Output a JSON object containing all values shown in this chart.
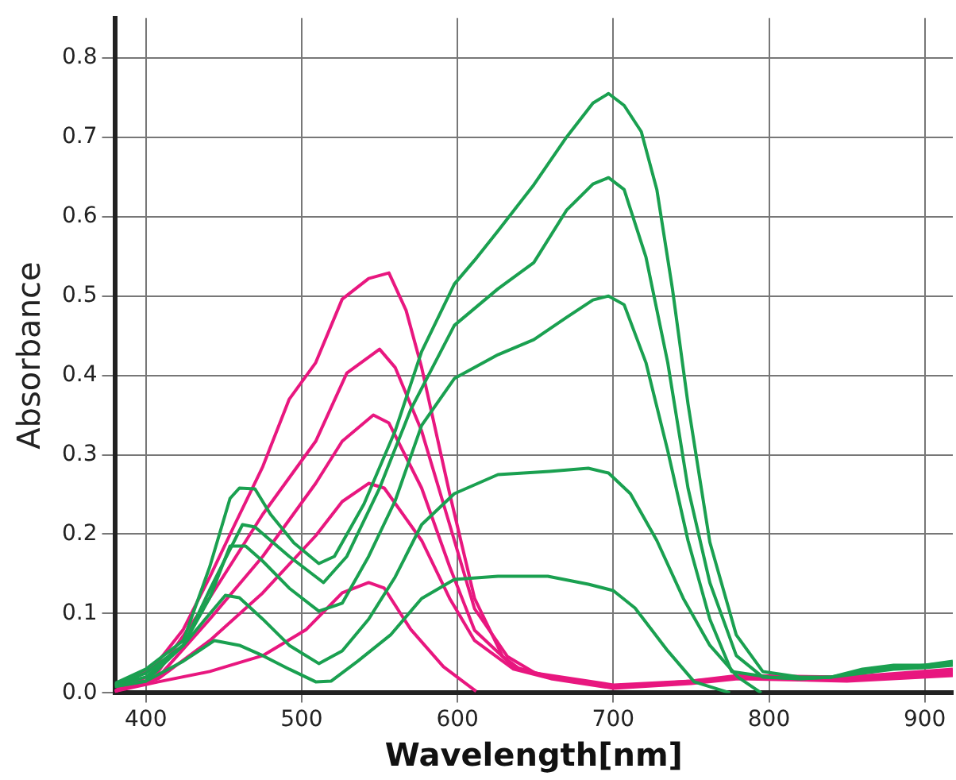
{
  "chart_data": {
    "type": "line",
    "xlabel": "Wavelength[nm]",
    "ylabel": "Absorbance",
    "xlim": [
      380,
      918
    ],
    "ylim": [
      0,
      0.85
    ],
    "xticks": [
      400,
      500,
      600,
      700,
      800,
      900
    ],
    "yticks": [
      {
        "value": 0,
        "label": "0.0"
      },
      0.1,
      0.2,
      0.3,
      0.4,
      0.5,
      0.6,
      0.7,
      0.8
    ],
    "grid": true,
    "legend": false,
    "marker": "none",
    "line_style": "solid",
    "series": [
      {
        "color": "#1aa050",
        "x": [
          380,
          400,
          424,
          441,
          454,
          460,
          470,
          480,
          495,
          511,
          521,
          540,
          560,
          577,
          598,
          611,
          626,
          649,
          670,
          687,
          697,
          707,
          718,
          728,
          738,
          748,
          762,
          779,
          796,
          820,
          840,
          860,
          880,
          900,
          918
        ],
        "values": [
          0.012,
          0.03,
          0.066,
          0.159,
          0.245,
          0.258,
          0.257,
          0.225,
          0.189,
          0.163,
          0.172,
          0.238,
          0.33,
          0.43,
          0.515,
          0.545,
          0.582,
          0.64,
          0.7,
          0.743,
          0.755,
          0.74,
          0.707,
          0.634,
          0.509,
          0.364,
          0.19,
          0.073,
          0.027,
          0.02,
          0.02,
          0.03,
          0.035,
          0.035,
          0.04
        ]
      },
      {
        "color": "#1aa050",
        "x": [
          380,
          400,
          424,
          441,
          462,
          470,
          492,
          514,
          529,
          550,
          570,
          598,
          626,
          649,
          670,
          687,
          697,
          707,
          721,
          735,
          748,
          762,
          779,
          796,
          820,
          840,
          860,
          880,
          900,
          918
        ],
        "values": [
          0.01,
          0.025,
          0.06,
          0.13,
          0.212,
          0.209,
          0.172,
          0.139,
          0.172,
          0.258,
          0.357,
          0.463,
          0.509,
          0.542,
          0.608,
          0.641,
          0.649,
          0.634,
          0.549,
          0.416,
          0.258,
          0.139,
          0.047,
          0.02,
          0.018,
          0.02,
          0.028,
          0.032,
          0.035,
          0.038
        ]
      },
      {
        "color": "#1aa050",
        "x": [
          380,
          400,
          424,
          441,
          454,
          464,
          475,
          492,
          511,
          526,
          543,
          560,
          577,
          598,
          626,
          649,
          670,
          687,
          697,
          707,
          721,
          735,
          748,
          762,
          776,
          800,
          820,
          840,
          860,
          880,
          900,
          918
        ],
        "values": [
          0.01,
          0.02,
          0.06,
          0.12,
          0.185,
          0.185,
          0.166,
          0.132,
          0.103,
          0.113,
          0.172,
          0.242,
          0.337,
          0.396,
          0.426,
          0.445,
          0.473,
          0.495,
          0.5,
          0.489,
          0.416,
          0.305,
          0.192,
          0.093,
          0.027,
          0.02,
          0.018,
          0.02,
          0.025,
          0.03,
          0.032,
          0.035
        ]
      },
      {
        "color": "#1aa050",
        "x": [
          380,
          400,
          424,
          451,
          460,
          475,
          492,
          511,
          526,
          543,
          560,
          577,
          598,
          626,
          659,
          684,
          697,
          711,
          728,
          745,
          762,
          780,
          795
        ],
        "values": [
          0.008,
          0.015,
          0.06,
          0.123,
          0.12,
          0.093,
          0.06,
          0.037,
          0.053,
          0.093,
          0.146,
          0.212,
          0.251,
          0.275,
          0.279,
          0.283,
          0.277,
          0.251,
          0.192,
          0.119,
          0.06,
          0.02,
          0
        ]
      },
      {
        "color": "#1aa050",
        "x": [
          380,
          400,
          424,
          444,
          460,
          475,
          492,
          509,
          519,
          536,
          557,
          577,
          598,
          626,
          658,
          684,
          700,
          714,
          735,
          752,
          775
        ],
        "values": [
          0.008,
          0.015,
          0.04,
          0.066,
          0.06,
          0.047,
          0.03,
          0.014,
          0.015,
          0.04,
          0.073,
          0.119,
          0.143,
          0.147,
          0.147,
          0.137,
          0.129,
          0.107,
          0.053,
          0.014,
          0
        ]
      },
      {
        "color": "#e8177f",
        "x": [
          380,
          408,
          424,
          441,
          457,
          475,
          492,
          509,
          526,
          543,
          556,
          567,
          577,
          595,
          611,
          629,
          640,
          660,
          700,
          750,
          780,
          850,
          918
        ],
        "values": [
          0.002,
          0.04,
          0.08,
          0.146,
          0.212,
          0.285,
          0.37,
          0.416,
          0.496,
          0.522,
          0.529,
          0.482,
          0.41,
          0.251,
          0.119,
          0.046,
          0.03,
          0.02,
          0.008,
          0.015,
          0.02,
          0.02,
          0.03
        ]
      },
      {
        "color": "#e8177f",
        "x": [
          380,
          408,
          441,
          475,
          509,
          529,
          550,
          560,
          577,
          595,
          611,
          632,
          650,
          700,
          750,
          780,
          850,
          918
        ],
        "values": [
          0.002,
          0.027,
          0.12,
          0.225,
          0.317,
          0.403,
          0.433,
          0.41,
          0.33,
          0.212,
          0.106,
          0.046,
          0.025,
          0.01,
          0.015,
          0.022,
          0.02,
          0.028
        ]
      },
      {
        "color": "#e8177f",
        "x": [
          380,
          408,
          441,
          475,
          509,
          526,
          546,
          556,
          577,
          595,
          611,
          636,
          660,
          700,
          750,
          780,
          850,
          918
        ],
        "values": [
          0.002,
          0.02,
          0.093,
          0.172,
          0.264,
          0.317,
          0.35,
          0.34,
          0.258,
          0.159,
          0.079,
          0.033,
          0.02,
          0.008,
          0.014,
          0.02,
          0.018,
          0.025
        ]
      },
      {
        "color": "#e8177f",
        "x": [
          380,
          408,
          441,
          475,
          509,
          526,
          543,
          553,
          577,
          595,
          611,
          636,
          660,
          700,
          750,
          780,
          850,
          918
        ],
        "values": [
          0.002,
          0.018,
          0.066,
          0.126,
          0.198,
          0.241,
          0.264,
          0.258,
          0.192,
          0.119,
          0.066,
          0.03,
          0.018,
          0.006,
          0.012,
          0.018,
          0.015,
          0.022
        ]
      },
      {
        "color": "#e8177f",
        "x": [
          380,
          408,
          441,
          475,
          503,
          526,
          543,
          553,
          570,
          591,
          612
        ],
        "values": [
          0.002,
          0.014,
          0.027,
          0.047,
          0.08,
          0.126,
          0.139,
          0.132,
          0.08,
          0.033,
          0.002
        ]
      }
    ]
  }
}
